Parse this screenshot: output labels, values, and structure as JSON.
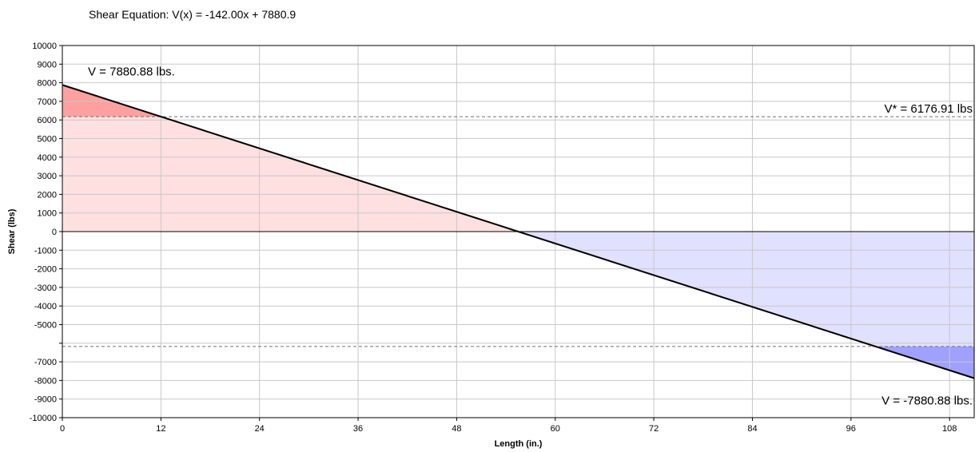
{
  "chart_data": {
    "type": "area",
    "title": "Shear Equation:  V(x) = -142.00x + 7880.9",
    "xlabel": "Length (in.)",
    "ylabel": "Shear (lbs)",
    "xlim": [
      0,
      111
    ],
    "ylim": [
      -10000,
      10000
    ],
    "x_ticks": [
      0,
      12,
      24,
      36,
      48,
      60,
      72,
      84,
      96,
      108
    ],
    "y_ticks": [
      10000,
      9000,
      8000,
      7000,
      6000,
      5000,
      4000,
      3000,
      2000,
      1000,
      0,
      -1000,
      -2000,
      -3000,
      -4000,
      -5000,
      -6000,
      -7000,
      -8000,
      -9000,
      -10000
    ],
    "y_tick_labels": [
      "10000",
      "9000",
      "8000",
      "7000",
      "6000",
      "5000",
      "4000",
      "3000",
      "2000",
      "1000",
      "0",
      "-1000",
      "-2000",
      "-3000",
      "-4000",
      "-5000",
      "",
      "-7000",
      "-8000",
      "-9000",
      "-10000"
    ],
    "grid": true,
    "series": [
      {
        "x": [
          0,
          111
        ],
        "y": [
          7880.88,
          -7880.88
        ]
      }
    ],
    "reference_lines": [
      {
        "y": 6176.91
      },
      {
        "y": -6176.91
      }
    ],
    "annotations": {
      "v_start": "V = 7880.88 lbs.",
      "v_star": "V* = 6176.91 lbs",
      "v_end": "V = -7880.88 lbs."
    },
    "colors": {
      "positive_fill": "#ffe0e0",
      "positive_over_limit_fill": "#ffa0a0",
      "negative_fill": "#e0e0ff",
      "negative_over_limit_fill": "#a0a0ff",
      "line": "#000000",
      "grid": "#c8c8c8",
      "reference": "#707070"
    }
  }
}
